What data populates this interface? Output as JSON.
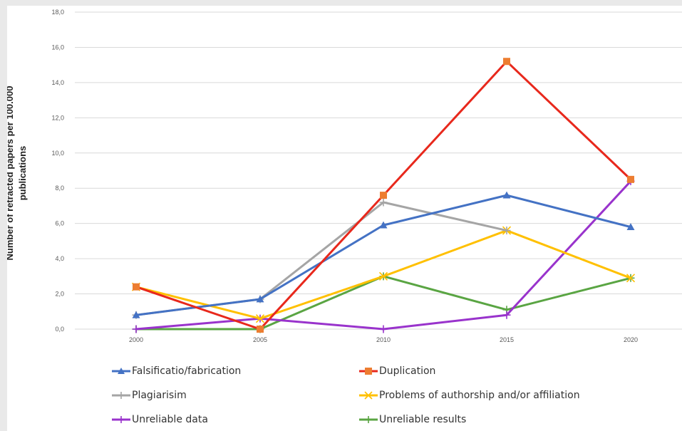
{
  "chart_data": {
    "type": "line",
    "title": "",
    "xlabel": "",
    "ylabel_lines": [
      "Number of retracted papers per 100.000",
      "publications"
    ],
    "x": [
      "2000",
      "2005",
      "2010",
      "2015",
      "2020"
    ],
    "y_ticks": [
      "0,0",
      "2,0",
      "4,0",
      "6,0",
      "8,0",
      "10,0",
      "12,0",
      "14,0",
      "16,0",
      "18,0"
    ],
    "ylim": [
      0,
      18
    ],
    "grid": true,
    "legend_position": "bottom",
    "series": [
      {
        "name": "Falsificatio/fabrication",
        "color": "#4472c4",
        "marker": "triangle",
        "values": [
          0.8,
          1.7,
          5.9,
          7.6,
          5.8
        ]
      },
      {
        "name": "Duplication",
        "color": "#e8281c",
        "marker_color": "#ed7d31",
        "marker": "square",
        "values": [
          2.4,
          0.0,
          7.6,
          15.2,
          8.5
        ]
      },
      {
        "name": "Plagiarisim",
        "color": "#a5a5a5",
        "marker": "plus",
        "values": [
          0.8,
          1.7,
          7.2,
          5.6,
          null
        ]
      },
      {
        "name": "Problems of authorship and/or affiliation",
        "color": "#ffc000",
        "marker": "x",
        "values": [
          2.4,
          0.6,
          3.0,
          5.6,
          2.9
        ]
      },
      {
        "name": "Unreliable data",
        "color": "#9933cc",
        "marker": "plus",
        "values": [
          0.0,
          0.6,
          0.0,
          0.8,
          8.4
        ]
      },
      {
        "name": "Unreliable results",
        "color": "#5aa543",
        "marker": "plus",
        "values": [
          0.0,
          0.0,
          3.0,
          1.1,
          2.9
        ]
      }
    ]
  }
}
